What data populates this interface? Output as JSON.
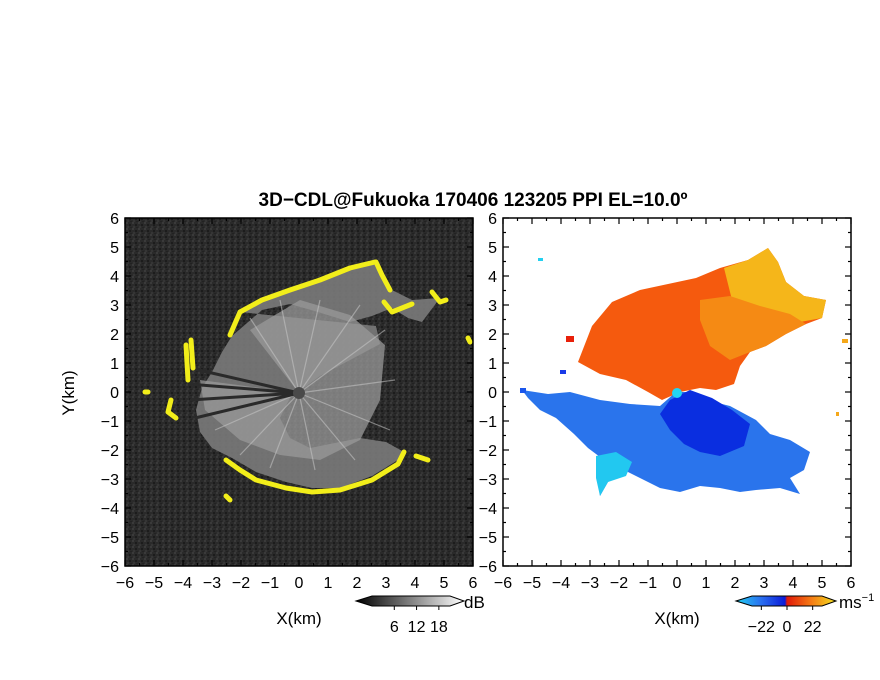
{
  "title": "3D−CDL@Fukuoka 170406 123205 PPI EL=10.0º",
  "colors": {
    "snr_background": "#2b2b2b",
    "snr_edge": "#f2ee1a",
    "velocity_approaching": [
      "#0b2ee0",
      "#1a5cf0",
      "#3a8cf4",
      "#22c8f0"
    ],
    "velocity_receding": [
      "#e81e0a",
      "#f24a10",
      "#f57a14",
      "#f5b21a",
      "#f2e020"
    ]
  },
  "chart_data": [
    {
      "type": "heatmap",
      "panel": "left",
      "quantity": "SNR",
      "xlabel": "X(km)",
      "ylabel": "Y(km)",
      "xlim": [
        -6,
        6
      ],
      "ylim": [
        -6,
        6
      ],
      "xticks": [
        "−6",
        "−5",
        "−4",
        "−3",
        "−2",
        "−1",
        "0",
        "1",
        "2",
        "3",
        "4",
        "5",
        "6"
      ],
      "yticks": [
        "6",
        "5",
        "4",
        "3",
        "2",
        "1",
        "0",
        "−1",
        "−2",
        "−3",
        "−4",
        "−5",
        "−6"
      ],
      "colorbar": {
        "ticks": [
          "6",
          "12",
          "18"
        ],
        "unit": "dB",
        "range": [
          0,
          21
        ]
      }
    },
    {
      "type": "heatmap",
      "panel": "right",
      "quantity": "Doppler velocity",
      "xlabel": "X(km)",
      "ylabel": "",
      "xlim": [
        -6,
        6
      ],
      "ylim": [
        -6,
        6
      ],
      "xticks": [
        "−6",
        "−5",
        "−4",
        "−3",
        "−2",
        "−1",
        "0",
        "1",
        "2",
        "3",
        "4",
        "5",
        "6"
      ],
      "yticks": [
        "6",
        "5",
        "4",
        "3",
        "2",
        "1",
        "0",
        "−1",
        "−2",
        "−3",
        "−4",
        "−5",
        "−6"
      ],
      "colorbar": {
        "ticks": [
          "−22",
          "0",
          "22"
        ],
        "unit": "ms",
        "unit_exp": "−1",
        "range": [
          -30,
          30
        ]
      }
    }
  ]
}
